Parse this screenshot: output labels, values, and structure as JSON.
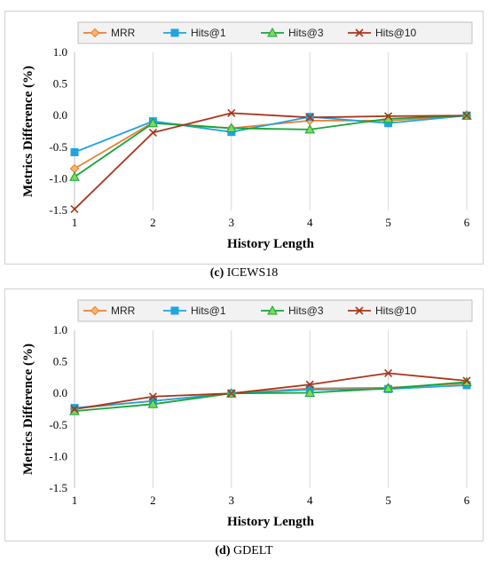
{
  "chart_data": [
    {
      "type": "line",
      "xlabel": "History Length",
      "ylabel": "Metrics  Difference (%)",
      "x": [
        1,
        2,
        3,
        4,
        5,
        6
      ],
      "ylim": [
        -1.5,
        1.0
      ],
      "yticks": [
        "1.0",
        "0.5",
        "0.0",
        "-0.5",
        "-1.0",
        "-1.5"
      ],
      "ytick_values": [
        1.0,
        0.5,
        0.0,
        -0.5,
        -1.0,
        -1.5
      ],
      "grid": "vertical",
      "legend": "top",
      "caption_label": "(c)",
      "caption_name": "ICEWS18",
      "series": [
        {
          "name": "MRR",
          "values": [
            -0.84,
            -0.11,
            -0.2,
            -0.08,
            -0.08,
            0.0
          ],
          "color": "#ED7D31",
          "marker": "diamond"
        },
        {
          "name": "Hits@1",
          "values": [
            -0.58,
            -0.09,
            -0.26,
            -0.02,
            -0.12,
            0.0
          ],
          "color": "#1FA5DF",
          "marker": "square"
        },
        {
          "name": "Hits@3",
          "values": [
            -0.97,
            -0.12,
            -0.2,
            -0.22,
            -0.05,
            0.0
          ],
          "color": "#13A538",
          "marker": "triangle"
        },
        {
          "name": "Hits@10",
          "values": [
            -1.48,
            -0.27,
            0.04,
            -0.03,
            -0.01,
            0.0
          ],
          "color": "#A8361B",
          "marker": "x"
        }
      ]
    },
    {
      "type": "line",
      "xlabel": "History Length",
      "ylabel": "Metrics  Difference (%)",
      "x": [
        1,
        2,
        3,
        4,
        5,
        6
      ],
      "ylim": [
        -1.5,
        1.0
      ],
      "yticks": [
        "1.0",
        "0.5",
        "0.0",
        "-0.5",
        "-1.0",
        "-1.5"
      ],
      "ytick_values": [
        1.0,
        0.5,
        0.0,
        -0.5,
        -1.0,
        -1.5
      ],
      "grid": "vertical",
      "legend": "top",
      "caption_label": "(d)",
      "caption_name": "GDELT",
      "series": [
        {
          "name": "MRR",
          "values": [
            -0.24,
            -0.12,
            0.0,
            0.08,
            0.09,
            0.16
          ],
          "color": "#ED7D31",
          "marker": "diamond"
        },
        {
          "name": "Hits@1",
          "values": [
            -0.23,
            -0.12,
            0.0,
            0.06,
            0.07,
            0.13
          ],
          "color": "#1FA5DF",
          "marker": "square"
        },
        {
          "name": "Hits@3",
          "values": [
            -0.28,
            -0.17,
            0.0,
            0.01,
            0.08,
            0.18
          ],
          "color": "#13A538",
          "marker": "triangle"
        },
        {
          "name": "Hits@10",
          "values": [
            -0.25,
            -0.05,
            0.0,
            0.14,
            0.32,
            0.2
          ],
          "color": "#A8361B",
          "marker": "x"
        }
      ]
    }
  ]
}
